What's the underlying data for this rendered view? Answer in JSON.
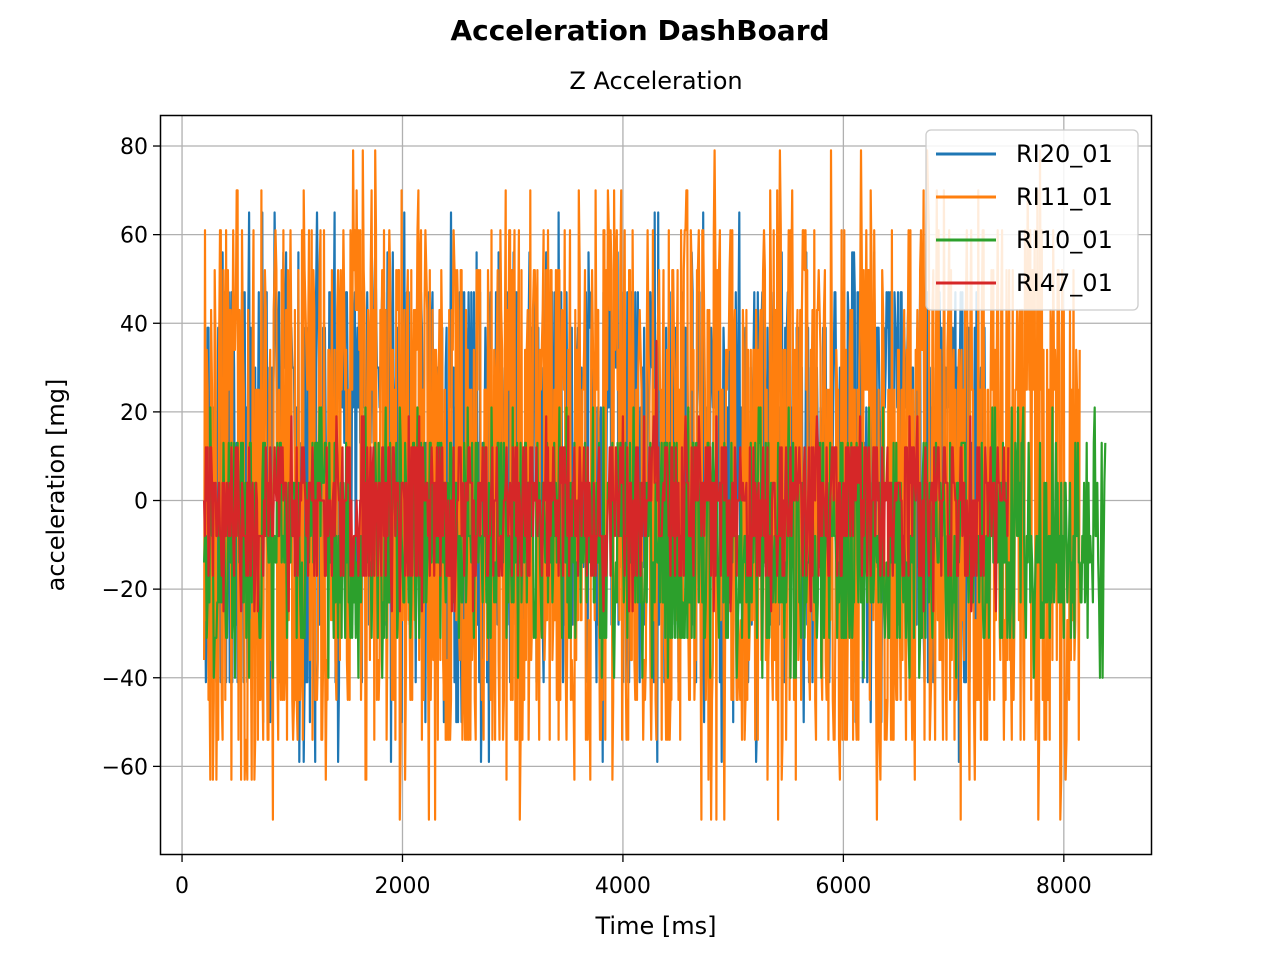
{
  "figure": {
    "suptitle": "Acceleration DashBoard"
  },
  "chart_data": {
    "type": "line",
    "title": "Z Acceleration",
    "xlabel": "Time [ms]",
    "ylabel": "acceleration [mg]",
    "xlim": [
      -200,
      8800
    ],
    "ylim": [
      -80,
      87
    ],
    "x_ticks": [
      0,
      2000,
      4000,
      6000,
      8000
    ],
    "x_tick_labels": [
      "0",
      "2000",
      "4000",
      "6000",
      "8000"
    ],
    "y_ticks": [
      -60,
      -40,
      -20,
      0,
      20,
      40,
      60,
      80
    ],
    "y_tick_labels": [
      "−60",
      "−40",
      "−20",
      "0",
      "20",
      "40",
      "60",
      "80"
    ],
    "grid": true,
    "legend_position": "top-right",
    "series": [
      {
        "name": "RI20_01",
        "color": "#1f77b4",
        "x_start": 200,
        "x_end": 7300,
        "levels": [
          -59,
          -50,
          -41,
          -28,
          -15,
          0,
          13,
          21,
          30,
          39,
          47,
          56,
          65
        ],
        "spikes": [
          [
            380,
            47
          ],
          [
            1060,
            -59
          ],
          [
            1540,
            39
          ],
          [
            2270,
            47
          ],
          [
            3050,
            47
          ],
          [
            3690,
            56
          ],
          [
            4290,
            65
          ],
          [
            5100,
            -52
          ],
          [
            6990,
            39
          ],
          [
            7050,
            -59
          ],
          [
            7280,
            39
          ]
        ]
      },
      {
        "name": "RI11_01",
        "color": "#ff7f0e",
        "x_start": 200,
        "x_end": 8150,
        "levels": [
          -72,
          -63,
          -54,
          -45,
          -36,
          -27,
          25,
          34,
          43,
          52,
          61,
          70,
          79
        ],
        "spikes": [
          [
            500,
            70
          ],
          [
            630,
            -63
          ],
          [
            820,
            -72
          ],
          [
            1000,
            -45
          ],
          [
            1530,
            61
          ],
          [
            2940,
            -63
          ],
          [
            4830,
            79
          ],
          [
            4450,
            52
          ],
          [
            7280,
            -54
          ],
          [
            7900,
            61
          ],
          [
            8010,
            -54
          ]
        ]
      },
      {
        "name": "RI10_01",
        "color": "#2ca02c",
        "x_start": 200,
        "x_end": 8380,
        "levels": [
          -40,
          -31,
          -23,
          -14,
          -8,
          4,
          13,
          21
        ],
        "spikes": [
          [
            8280,
            21
          ],
          [
            8330,
            -40
          ],
          [
            1950,
            -31
          ],
          [
            5500,
            21
          ]
        ]
      },
      {
        "name": "RI47_01",
        "color": "#d62728",
        "x_start": 200,
        "x_end": 7500,
        "levels": [
          -25,
          -17,
          -8,
          0,
          4,
          12,
          19
        ],
        "spikes": [
          [
            4300,
            36
          ],
          [
            2470,
            -25
          ],
          [
            7380,
            -25
          ]
        ]
      }
    ]
  }
}
